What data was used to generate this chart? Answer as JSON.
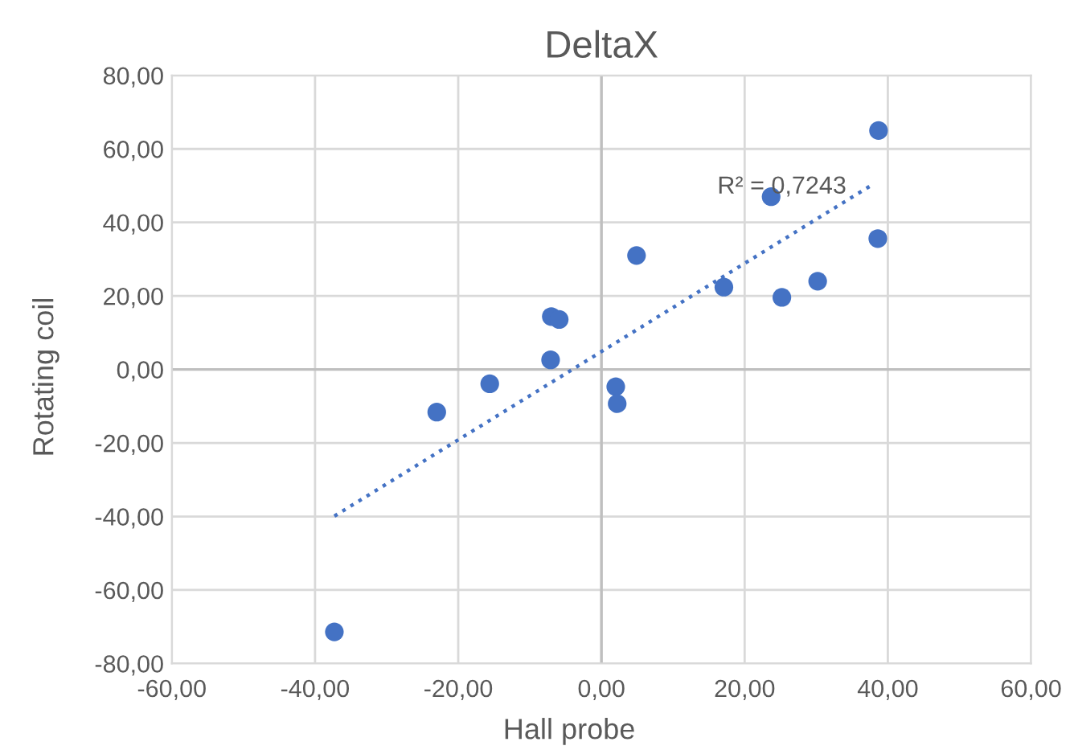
{
  "chart_data": {
    "type": "scatter",
    "title": "DeltaX",
    "xlabel": "Hall probe",
    "ylabel": "Rotating coil",
    "series": [
      {
        "color": "#4472c4",
        "marker": "circle",
        "x": [
          38.7,
          23.7,
          4.9,
          38.6,
          17.1,
          30.2,
          25.2,
          -7.0,
          -5.9,
          -7.1,
          -15.6,
          2.0,
          2.2,
          -23.0,
          -37.3
        ],
        "values": [
          65.0,
          47.0,
          31.0,
          35.6,
          22.4,
          24.0,
          19.6,
          14.4,
          13.6,
          2.6,
          -3.9,
          -4.7,
          -9.3,
          -11.6,
          -71.4
        ]
      },
      {
        "type": "line",
        "color": "#4472c4",
        "line_style": "dotted",
        "marker": "none",
        "x": [
          -37.3,
          37.7
        ],
        "values": [
          -39.9,
          50.1
        ]
      }
    ],
    "annotations": [
      "R² = 0,7243"
    ],
    "xlim": [
      -60,
      60
    ],
    "ylim": [
      -80,
      80
    ],
    "xticks": [
      {
        "value": -60,
        "label": "-60,00"
      },
      {
        "value": -40,
        "label": "-40,00"
      },
      {
        "value": -20,
        "label": "-20,00"
      },
      {
        "value": 0,
        "label": "0,00"
      },
      {
        "value": 20,
        "label": "20,00"
      },
      {
        "value": 40,
        "label": "40,00"
      },
      {
        "value": 60,
        "label": "60,00"
      }
    ],
    "yticks": [
      {
        "value": -80,
        "label": "-80,00"
      },
      {
        "value": -60,
        "label": "-60,00"
      },
      {
        "value": -40,
        "label": "-40,00"
      },
      {
        "value": -20,
        "label": "-20,00"
      },
      {
        "value": 0,
        "label": "0,00"
      },
      {
        "value": 20,
        "label": "20,00"
      },
      {
        "value": 40,
        "label": "40,00"
      },
      {
        "value": 60,
        "label": "60,00"
      },
      {
        "value": 80,
        "label": "80,00"
      }
    ],
    "grid": true,
    "legend": false
  }
}
